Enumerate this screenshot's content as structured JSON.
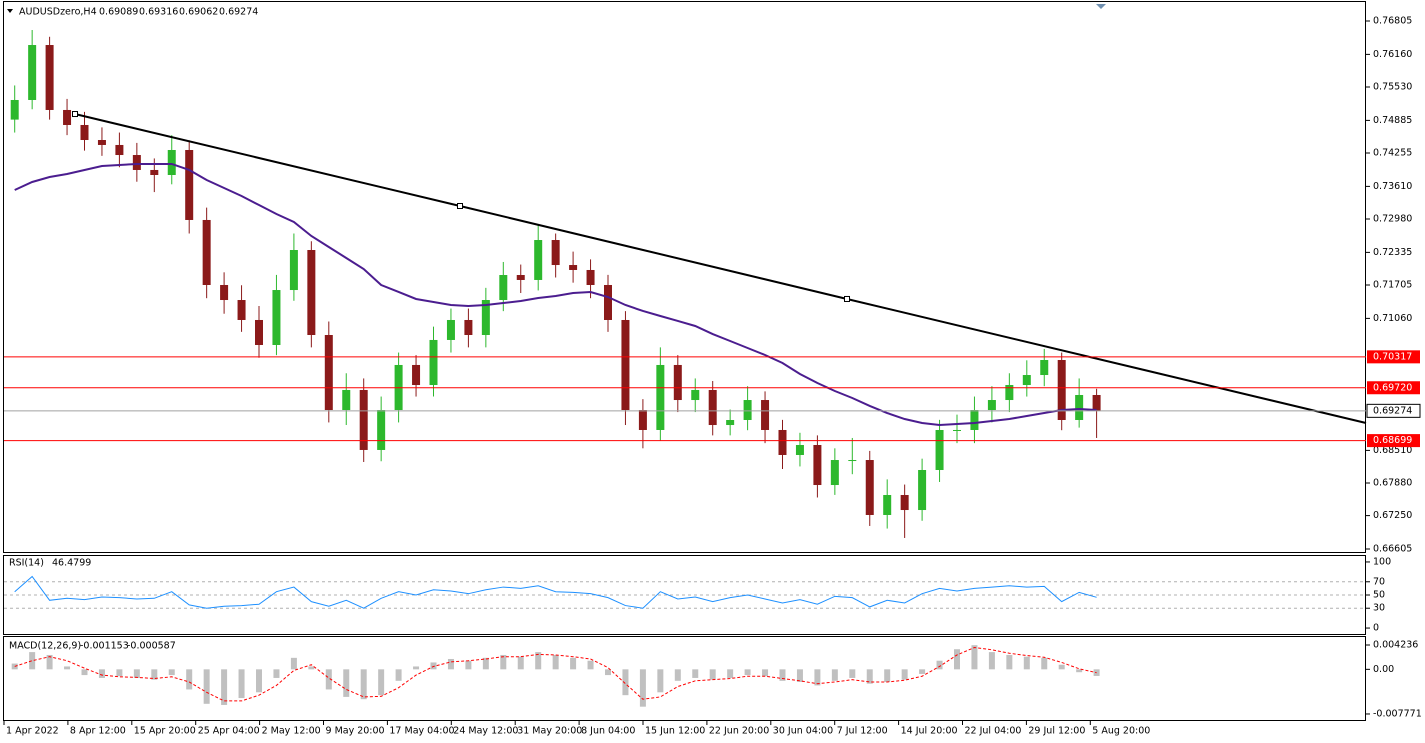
{
  "chart_data": [
    {
      "type": "candlestick",
      "symbol": "AUDUSDzero,H4",
      "last_bar": [
        0.69089,
        0.69316,
        0.69062,
        0.69274
      ],
      "categories": [
        null,
        null,
        null,
        null,
        null,
        null,
        null,
        null,
        null,
        null,
        null,
        null,
        null,
        null,
        null,
        null,
        null,
        null,
        null,
        null,
        null,
        null,
        null,
        null,
        null,
        null,
        null,
        null,
        null,
        null,
        null,
        null,
        null,
        null,
        null,
        null,
        null,
        null,
        null,
        null,
        null,
        null,
        null,
        null,
        null,
        null,
        null,
        null,
        null,
        null,
        null,
        null,
        null,
        null,
        null,
        null,
        null,
        null,
        null,
        null,
        null,
        null,
        null
      ],
      "open": [
        0.749,
        0.75279,
        0.76341,
        0.75086,
        0.74796,
        0.74506,
        0.7441,
        0.74216,
        0.73927,
        0.7383,
        0.74313,
        0.72961,
        0.71705,
        0.71415,
        0.71029,
        0.70546,
        0.71608,
        0.72381,
        0.70739,
        0.6929,
        0.69677,
        0.68518,
        0.6929,
        0.7016,
        0.69773,
        0.70643,
        0.71029,
        0.70739,
        0.71415,
        0.71898,
        0.71802,
        0.72574,
        0.72091,
        0.71995,
        0.71705,
        0.71029,
        0.6929,
        0.68904,
        0.7016,
        0.69483,
        0.69677,
        0.69,
        0.69097,
        0.69483,
        0.68904,
        0.68421,
        0.68614,
        0.67841,
        0.68324,
        0.68324,
        0.67262,
        0.67648,
        0.67358,
        0.68131,
        0.68904,
        0.68904,
        0.6929,
        0.69483,
        0.69773,
        0.69966,
        0.70256,
        0.69097,
        0.6958
      ],
      "high": [
        0.7556,
        0.76631,
        0.765,
        0.753,
        0.7505,
        0.7475,
        0.7465,
        0.7445,
        0.7415,
        0.746,
        0.745,
        0.732,
        0.7195,
        0.717,
        0.713,
        0.719,
        0.727,
        0.7255,
        0.71,
        0.7,
        0.699,
        0.6955,
        0.704,
        0.7035,
        0.709,
        0.7125,
        0.7125,
        0.7165,
        0.7215,
        0.721,
        0.7288,
        0.727,
        0.7235,
        0.722,
        0.719,
        0.712,
        0.695,
        0.705,
        0.7035,
        0.699,
        0.6985,
        0.693,
        0.6975,
        0.6965,
        0.691,
        0.6885,
        0.688,
        0.6855,
        0.6875,
        0.685,
        0.6795,
        0.6785,
        0.6835,
        0.691,
        0.692,
        0.6955,
        0.6975,
        0.7,
        0.7025,
        0.7047,
        0.704,
        0.699,
        0.697
      ],
      "low": [
        0.7465,
        0.751,
        0.749,
        0.746,
        0.743,
        0.742,
        0.7398,
        0.737,
        0.735,
        0.7365,
        0.727,
        0.7145,
        0.7115,
        0.708,
        0.703,
        0.7035,
        0.714,
        0.705,
        0.6905,
        0.69,
        0.68286,
        0.683,
        0.6905,
        0.6955,
        0.6955,
        0.704,
        0.705,
        0.705,
        0.712,
        0.7155,
        0.716,
        0.7185,
        0.7175,
        0.7145,
        0.708,
        0.69,
        0.6855,
        0.687,
        0.6925,
        0.6925,
        0.688,
        0.688,
        0.689,
        0.6865,
        0.6815,
        0.682,
        0.676,
        0.6765,
        0.6805,
        0.6705,
        0.67,
        0.66818,
        0.6715,
        0.679,
        0.6865,
        0.6865,
        0.6905,
        0.6925,
        0.6955,
        0.6975,
        0.689,
        0.6895,
        0.6875
      ],
      "close": [
        0.75279,
        0.76341,
        0.75086,
        0.74796,
        0.74506,
        0.7441,
        0.74216,
        0.73927,
        0.7383,
        0.74313,
        0.72961,
        0.71705,
        0.71415,
        0.71029,
        0.70546,
        0.71608,
        0.72381,
        0.70739,
        0.6929,
        0.69677,
        0.68518,
        0.6929,
        0.7016,
        0.69773,
        0.70643,
        0.71029,
        0.70739,
        0.71415,
        0.71898,
        0.71802,
        0.72574,
        0.72091,
        0.71995,
        0.71705,
        0.71029,
        0.6929,
        0.68904,
        0.7016,
        0.69483,
        0.69677,
        0.69,
        0.69097,
        0.69483,
        0.68904,
        0.68421,
        0.68614,
        0.67841,
        0.68324,
        0.68324,
        0.67262,
        0.67648,
        0.67358,
        0.68131,
        0.68904,
        0.68904,
        0.6929,
        0.69483,
        0.69773,
        0.69966,
        0.70256,
        0.69097,
        0.6958,
        0.69274
      ],
      "up_color": "#2db82d",
      "down_color": "#8b1a1a",
      "ma": {
        "color": "#4b1d8f",
        "values": [
          0.7354,
          0.73695,
          0.73791,
          0.73849,
          0.73927,
          0.74004,
          0.74023,
          0.74043,
          0.74043,
          0.74043,
          0.73927,
          0.73733,
          0.73579,
          0.73424,
          0.7325,
          0.73077,
          0.72922,
          0.72652,
          0.72439,
          0.72227,
          0.72014,
          0.71705,
          0.7157,
          0.71435,
          0.71377,
          0.71319,
          0.71299,
          0.71319,
          0.71357,
          0.71396,
          0.71454,
          0.71493,
          0.71551,
          0.7157,
          0.71473,
          0.71319,
          0.71203,
          0.71106,
          0.7101,
          0.70913,
          0.70758,
          0.70623,
          0.70488,
          0.70353,
          0.70198,
          0.69986,
          0.69812,
          0.69657,
          0.69522,
          0.69368,
          0.69232,
          0.69116,
          0.69039,
          0.69,
          0.6902,
          0.69039,
          0.69078,
          0.69116,
          0.69174,
          0.69232,
          0.6929,
          0.6931,
          0.6929
        ]
      },
      "trendline": {
        "color": "#000000",
        "values": [
          0.75008,
          0.73231,
          0.71435,
          0.69039
        ]
      },
      "levels": [
        0.70317,
        {
          "value": 0.6972,
          "label": "0.69720"
        },
        0.68699
      ],
      "level_color": "#ff0000",
      "bid_color": "#a0a0a0",
      "ylim": [
        0.66547,
        0.77172
      ],
      "yticks": [
        0.76805,
        {
          "value": 0.7616,
          "label": "0.76160"
        },
        {
          "value": 0.7553,
          "label": "0.75530"
        },
        0.74885,
        0.74255,
        {
          "value": 0.7361,
          "label": "0.73610"
        },
        {
          "value": 0.7298,
          "label": "0.72980"
        },
        0.72335,
        0.71705,
        {
          "value": 0.7106,
          "label": "0.71060"
        },
        {
          "value": 0.6851,
          "label": "0.68510"
        },
        {
          "value": 0.6788,
          "label": "0.67880"
        },
        {
          "value": 0.6725,
          "label": "0.67250"
        },
        0.66605
      ],
      "x_labels": [
        "1 Apr 2022",
        "8 Apr 12:00",
        "15 Apr 20:00",
        "25 Apr 04:00",
        "2 May 12:00",
        "9 May 20:00",
        "17 May 04:00",
        "24 May 12:00",
        "31 May 20:00",
        "8 Jun 04:00",
        "15 Jun 12:00",
        "22 Jun 20:00",
        "30 Jun 04:00",
        "7 Jul 12:00",
        "14 Jul 20:00",
        "22 Jul 04:00",
        "29 Jul 12:00",
        "5 Aug 20:00"
      ]
    },
    {
      "type": "line",
      "name": "RSI(14)",
      "color": "#1e90ff",
      "values": [
        55,
        78,
        42,
        45,
        43,
        47,
        46,
        44,
        45,
        55,
        35,
        30,
        33,
        34,
        36,
        55,
        62,
        40,
        33,
        42,
        30,
        45,
        55,
        50,
        58,
        56,
        52,
        58,
        62,
        60,
        64,
        55,
        54,
        52,
        46,
        34,
        30,
        55,
        44,
        47,
        40,
        46,
        50,
        44,
        38,
        43,
        36,
        48,
        46,
        32,
        42,
        38,
        52,
        60,
        56,
        60,
        62,
        64,
        62,
        63,
        40,
        54,
        46.4799
      ],
      "levels": [
        70,
        50,
        30
      ],
      "ylim": [
        -9,
        109
      ],
      "yticks": [
        100,
        70,
        50,
        30,
        0
      ]
    },
    {
      "type": "macd",
      "name": "MACD(12,26,9)",
      "series": [
        {
          "color": "#c0c0c0",
          "values": [
            0.001,
            0.003,
            0.0025,
            0.0005,
            -0.001,
            -0.0015,
            -0.0012,
            -0.0015,
            -0.0018,
            -0.001,
            -0.0035,
            -0.006,
            -0.0062,
            -0.005,
            -0.004,
            -0.0015,
            0.002,
            0.0005,
            -0.0035,
            -0.0048,
            -0.0052,
            -0.0045,
            -0.002,
            0.0005,
            0.0012,
            0.0018,
            0.0015,
            0.002,
            0.0025,
            0.0022,
            0.003,
            0.0025,
            0.002,
            0.0015,
            -0.001,
            -0.0045,
            -0.0065,
            -0.004,
            -0.002,
            -0.0015,
            -0.0018,
            -0.0015,
            -0.001,
            -0.0012,
            -0.002,
            -0.0022,
            -0.0028,
            -0.002,
            -0.0015,
            -0.0025,
            -0.0022,
            -0.0018,
            -0.0008,
            0.0015,
            0.0035,
            0.0042,
            0.003,
            0.0025,
            0.0022,
            0.002,
            0.0008,
            -0.0005,
            -0.001153
          ]
        },
        {
          "color": "#ff0000",
          "values": [
            0.0005,
            0.0015,
            0.0022,
            0.0015,
            0.0002,
            -0.001,
            -0.0013,
            -0.0014,
            -0.0016,
            -0.0013,
            -0.0022,
            -0.004,
            -0.0055,
            -0.0055,
            -0.0045,
            -0.0028,
            -0.0002,
            0.0008,
            -0.0015,
            -0.0035,
            -0.0048,
            -0.0047,
            -0.0032,
            -0.001,
            0.0005,
            0.0013,
            0.0015,
            0.0018,
            0.0022,
            0.0022,
            0.0026,
            0.0025,
            0.0022,
            0.0018,
            0.0003,
            -0.0025,
            -0.0052,
            -0.0048,
            -0.003,
            -0.002,
            -0.0018,
            -0.0016,
            -0.0012,
            -0.0012,
            -0.0016,
            -0.002,
            -0.0025,
            -0.0022,
            -0.0018,
            -0.0022,
            -0.0022,
            -0.0019,
            -0.0012,
            0.0005,
            0.0025,
            0.0038,
            0.0034,
            0.0028,
            0.0024,
            0.0021,
            0.0012,
            0.0001,
            -0.000587
          ]
        }
      ],
      "ylim": [
        -0.00882,
        0.005628
      ],
      "yticks": [
        0.004236,
        {
          "value": 0,
          "label": "0.00"
        },
        -0.007771
      ]
    }
  ]
}
